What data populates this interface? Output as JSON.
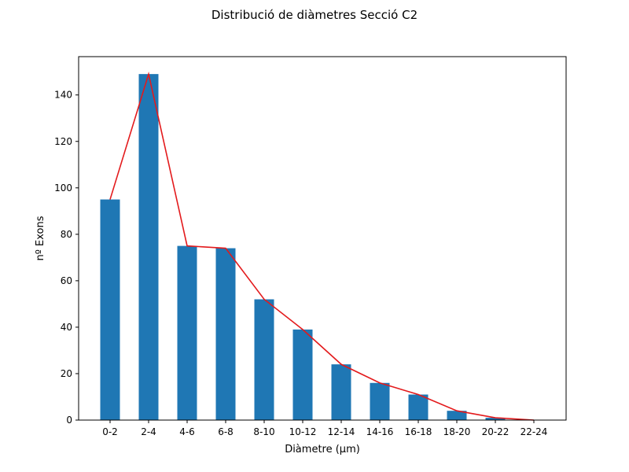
{
  "chart_data": {
    "type": "bar",
    "title": "Distribució de diàmetres Secció C2",
    "xlabel": "Diàmetre (µm)",
    "ylabel": "nº Exons",
    "categories": [
      "0-2",
      "2-4",
      "4-6",
      "6-8",
      "8-10",
      "10-12",
      "12-14",
      "14-16",
      "16-18",
      "18-20",
      "20-22",
      "22-24"
    ],
    "values": [
      95,
      149,
      75,
      74,
      52,
      39,
      24,
      16,
      11,
      4,
      1,
      0
    ],
    "line_values": [
      95,
      149,
      75,
      74,
      52,
      39,
      24,
      16,
      11,
      4,
      1,
      0
    ],
    "ylim": [
      0,
      156.5
    ],
    "yticks": [
      0,
      20,
      40,
      60,
      80,
      100,
      120,
      140
    ],
    "bar_color": "#1f77b4",
    "line_color": "#e31a1c",
    "grid": false,
    "legend": false
  }
}
